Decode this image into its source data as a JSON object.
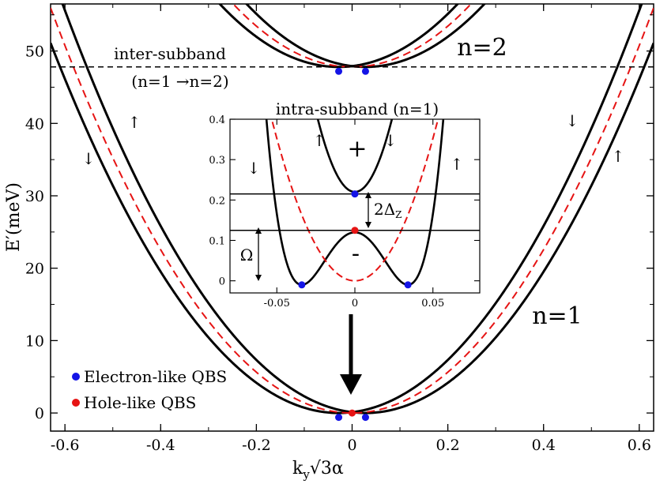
{
  "chart_data": [
    {
      "type": "line",
      "xlabel": "k",
      "xlabel_sub": "y",
      "xlabel_rest": "√3α",
      "ylabel": "E′(meV)",
      "xlim": [
        -0.63,
        0.63
      ],
      "ylim": [
        -2.5,
        56.5
      ],
      "x_ticks": [
        -0.6,
        -0.4,
        -0.2,
        0,
        0.2,
        0.4,
        0.6
      ],
      "x_tick_labels": [
        "-0.6",
        "-0.4",
        "-0.2",
        "0",
        "0.2",
        "0.4",
        "0.6"
      ],
      "y_ticks": [
        0,
        10,
        20,
        30,
        40,
        50
      ],
      "y_tick_labels": [
        "0",
        "10",
        "20",
        "30",
        "40",
        "50"
      ],
      "grid": false,
      "series_model": {
        "n1": {
          "offset": 0,
          "min_k": 0.028,
          "depth": 0.12,
          "curvature": 141
        },
        "n2": {
          "offset": 47.8,
          "min_k": 0.028,
          "depth": 0.12,
          "curvature": 141
        },
        "hole_curvature": 141
      },
      "annotations": [
        {
          "id": "inter",
          "text": "inter-subband"
        },
        {
          "id": "inter_transition",
          "text": "(n=1 →n=2)"
        },
        {
          "id": "n2",
          "text": "n=2"
        },
        {
          "id": "n1",
          "text": "n=1"
        },
        {
          "id": "arrow_up_left",
          "text": "↑"
        },
        {
          "id": "arrow_down_left",
          "text": "↓"
        },
        {
          "id": "arrow_down_right",
          "text": "↓"
        },
        {
          "id": "arrow_up_right",
          "text": "↑"
        }
      ],
      "inter_subband_level": 47.8,
      "points": {
        "electron_like": [
          [
            -0.028,
            -0.6
          ],
          [
            0.028,
            -0.6
          ],
          [
            -0.028,
            47.2
          ],
          [
            0.028,
            47.2
          ]
        ],
        "hole_like": [
          [
            0,
            0.0
          ]
        ]
      },
      "legend": {
        "placement": "bottom-left",
        "entries": [
          {
            "label": "Electron-like QBS",
            "color": "#1414e6"
          },
          {
            "label": "Hole-like QBS",
            "color": "#e61414"
          }
        ]
      },
      "colors": {
        "solid": "#000000",
        "dashed": "#e61414",
        "electron": "#1414e6",
        "hole": "#e61414"
      }
    },
    {
      "type": "line",
      "title": "intra-subband (n=1)",
      "xlim": [
        -0.08,
        0.08
      ],
      "ylim": [
        -0.03,
        0.4
      ],
      "x_ticks": [
        -0.05,
        0,
        0.05
      ],
      "x_tick_labels": [
        "-0.05",
        "0",
        "0.05"
      ],
      "y_ticks": [
        0,
        0.1,
        0.2,
        0.3,
        0.4
      ],
      "y_tick_labels": [
        "0",
        "0.1",
        "0.2",
        "0.3",
        "0.4"
      ],
      "lower_band": {
        "minimum": -0.01,
        "minimum_k": 0.034,
        "value_at_zero": 0.12
      },
      "upper_band": {
        "value_at_zero": 0.22
      },
      "hole_band": {
        "value_at_zero": 0.0
      },
      "horizontal_lines": [
        0.215,
        0.125
      ],
      "annotations": [
        {
          "id": "plus",
          "text": "+"
        },
        {
          "id": "minus",
          "text": "-"
        },
        {
          "id": "omega",
          "text": "Ω"
        },
        {
          "id": "gap",
          "text": "2Δ",
          "sub": "Z"
        },
        {
          "id": "spin_up_left",
          "text": "↑"
        },
        {
          "id": "spin_down_center",
          "text": "↓"
        },
        {
          "id": "spin_down_left",
          "text": "↓"
        },
        {
          "id": "spin_up_right",
          "text": "↑"
        }
      ],
      "points": {
        "electron_like": [
          [
            -0.034,
            -0.01
          ],
          [
            0.034,
            -0.01
          ],
          [
            0,
            0.215
          ]
        ],
        "hole_like": [
          [
            0,
            0.125
          ]
        ]
      }
    }
  ]
}
